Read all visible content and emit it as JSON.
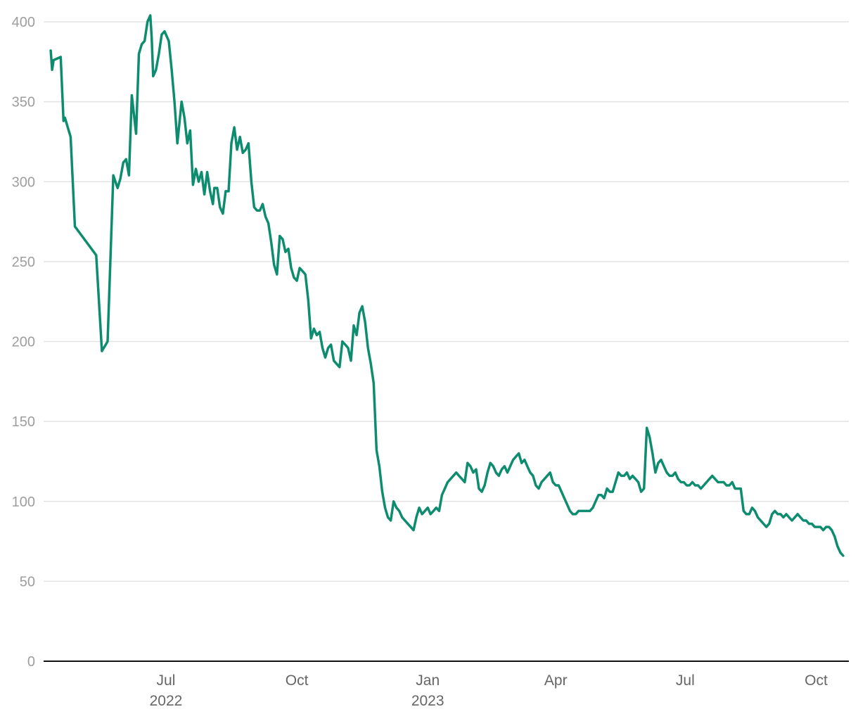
{
  "chart_data": {
    "type": "line",
    "title": "",
    "xlabel": "",
    "ylabel": "",
    "ylim": [
      0,
      400
    ],
    "xlim": [
      "2022-04-06",
      "2023-10-24"
    ],
    "grid": true,
    "legend": "none",
    "y_ticks": [
      0,
      50,
      100,
      150,
      200,
      250,
      300,
      350,
      400
    ],
    "x_ticks": [
      {
        "date": "2022-07-01",
        "label": "Jul",
        "year": "2022"
      },
      {
        "date": "2022-10-01",
        "label": "Oct",
        "year": ""
      },
      {
        "date": "2023-01-01",
        "label": "Jan",
        "year": "2023"
      },
      {
        "date": "2023-04-01",
        "label": "Apr",
        "year": ""
      },
      {
        "date": "2023-07-01",
        "label": "Jul",
        "year": ""
      },
      {
        "date": "2023-10-01",
        "label": "Oct",
        "year": ""
      }
    ],
    "colors": {
      "line": "#0e8c6f",
      "grid": "#e3e3e3",
      "axis": "#111111"
    },
    "x": [
      "2022-04-11",
      "2022-04-12",
      "2022-04-13",
      "2022-04-18",
      "2022-04-20",
      "2022-04-21",
      "2022-04-25",
      "2022-04-28",
      "2022-05-13",
      "2022-05-17",
      "2022-05-21",
      "2022-05-25",
      "2022-05-28",
      "2022-05-30",
      "2022-06-01",
      "2022-06-03",
      "2022-06-05",
      "2022-06-07",
      "2022-06-10",
      "2022-06-12",
      "2022-06-14",
      "2022-06-16",
      "2022-06-18",
      "2022-06-20",
      "2022-06-21",
      "2022-06-22",
      "2022-06-24",
      "2022-06-26",
      "2022-06-28",
      "2022-06-30",
      "2022-07-03",
      "2022-07-05",
      "2022-07-07",
      "2022-07-09",
      "2022-07-12",
      "2022-07-14",
      "2022-07-16",
      "2022-07-18",
      "2022-07-20",
      "2022-07-22",
      "2022-07-24",
      "2022-07-26",
      "2022-07-28",
      "2022-07-30",
      "2022-08-01",
      "2022-08-03",
      "2022-08-04",
      "2022-08-06",
      "2022-08-08",
      "2022-08-10",
      "2022-08-12",
      "2022-08-14",
      "2022-08-16",
      "2022-08-18",
      "2022-08-20",
      "2022-08-22",
      "2022-08-24",
      "2022-08-26",
      "2022-08-28",
      "2022-08-30",
      "2022-09-01",
      "2022-09-03",
      "2022-09-05",
      "2022-09-07",
      "2022-09-09",
      "2022-09-11",
      "2022-09-13",
      "2022-09-15",
      "2022-09-17",
      "2022-09-19",
      "2022-09-21",
      "2022-09-23",
      "2022-09-25",
      "2022-09-27",
      "2022-09-29",
      "2022-10-01",
      "2022-10-03",
      "2022-10-05",
      "2022-10-07",
      "2022-10-09",
      "2022-10-11",
      "2022-10-13",
      "2022-10-15",
      "2022-10-17",
      "2022-10-19",
      "2022-10-21",
      "2022-10-23",
      "2022-10-25",
      "2022-10-27",
      "2022-10-29",
      "2022-10-31",
      "2022-11-02",
      "2022-11-04",
      "2022-11-06",
      "2022-11-08",
      "2022-11-10",
      "2022-11-12",
      "2022-11-14",
      "2022-11-16",
      "2022-11-18",
      "2022-11-20",
      "2022-11-22",
      "2022-11-24",
      "2022-11-26",
      "2022-11-28",
      "2022-11-30",
      "2022-12-02",
      "2022-12-04",
      "2022-12-06",
      "2022-12-08",
      "2022-12-10",
      "2022-12-12",
      "2022-12-14",
      "2022-12-16",
      "2022-12-18",
      "2022-12-20",
      "2022-12-22",
      "2022-12-24",
      "2022-12-26",
      "2022-12-28",
      "2022-12-30",
      "2023-01-01",
      "2023-01-03",
      "2023-01-05",
      "2023-01-07",
      "2023-01-09",
      "2023-01-11",
      "2023-01-13",
      "2023-01-15",
      "2023-01-17",
      "2023-01-19",
      "2023-01-21",
      "2023-01-23",
      "2023-01-25",
      "2023-01-27",
      "2023-01-29",
      "2023-01-31",
      "2023-02-02",
      "2023-02-04",
      "2023-02-06",
      "2023-02-08",
      "2023-02-10",
      "2023-02-12",
      "2023-02-14",
      "2023-02-16",
      "2023-02-18",
      "2023-02-20",
      "2023-02-22",
      "2023-02-24",
      "2023-02-26",
      "2023-02-28",
      "2023-03-02",
      "2023-03-04",
      "2023-03-06",
      "2023-03-08",
      "2023-03-10",
      "2023-03-12",
      "2023-03-14",
      "2023-03-16",
      "2023-03-18",
      "2023-03-20",
      "2023-03-22",
      "2023-03-24",
      "2023-03-26",
      "2023-03-28",
      "2023-03-30",
      "2023-04-01",
      "2023-04-03",
      "2023-04-05",
      "2023-04-07",
      "2023-04-09",
      "2023-04-11",
      "2023-04-13",
      "2023-04-15",
      "2023-04-17",
      "2023-04-19",
      "2023-04-21",
      "2023-04-23",
      "2023-04-25",
      "2023-04-27",
      "2023-04-29",
      "2023-05-01",
      "2023-05-03",
      "2023-05-05",
      "2023-05-07",
      "2023-05-09",
      "2023-05-11",
      "2023-05-13",
      "2023-05-15",
      "2023-05-17",
      "2023-05-19",
      "2023-05-21",
      "2023-05-23",
      "2023-05-25",
      "2023-05-27",
      "2023-05-29",
      "2023-05-31",
      "2023-06-02",
      "2023-06-04",
      "2023-06-06",
      "2023-06-08",
      "2023-06-10",
      "2023-06-12",
      "2023-06-14",
      "2023-06-16",
      "2023-06-18",
      "2023-06-20",
      "2023-06-22",
      "2023-06-24",
      "2023-06-26",
      "2023-06-28",
      "2023-06-30",
      "2023-07-02",
      "2023-07-04",
      "2023-07-06",
      "2023-07-08",
      "2023-07-10",
      "2023-07-12",
      "2023-07-14",
      "2023-07-16",
      "2023-07-18",
      "2023-07-20",
      "2023-07-22",
      "2023-07-24",
      "2023-07-26",
      "2023-07-28",
      "2023-07-30",
      "2023-08-01",
      "2023-08-03",
      "2023-08-05",
      "2023-08-07",
      "2023-08-09",
      "2023-08-11",
      "2023-08-13",
      "2023-08-15",
      "2023-08-17",
      "2023-08-19",
      "2023-08-21",
      "2023-08-23",
      "2023-08-25",
      "2023-08-27",
      "2023-08-29",
      "2023-08-31",
      "2023-09-02",
      "2023-09-04",
      "2023-09-06",
      "2023-09-08",
      "2023-09-10",
      "2023-09-12",
      "2023-09-14",
      "2023-09-16",
      "2023-09-18",
      "2023-09-20",
      "2023-09-22",
      "2023-09-24",
      "2023-09-26",
      "2023-09-28",
      "2023-09-30",
      "2023-10-02",
      "2023-10-04",
      "2023-10-06",
      "2023-10-08",
      "2023-10-10",
      "2023-10-12",
      "2023-10-14",
      "2023-10-16",
      "2023-10-18",
      "2023-10-20"
    ],
    "series": [
      {
        "values": [
          382,
          370,
          376,
          378,
          338,
          340,
          328,
          272,
          254,
          194,
          200,
          304,
          296,
          302,
          312,
          314,
          304,
          354,
          330,
          380,
          386,
          388,
          400,
          404,
          390,
          366,
          370,
          380,
          392,
          394,
          388,
          370,
          350,
          324,
          350,
          340,
          324,
          332,
          298,
          308,
          300,
          306,
          292,
          306,
          294,
          286,
          296,
          296,
          284,
          280,
          294,
          294,
          324,
          334,
          320,
          328,
          318,
          320,
          324,
          300,
          284,
          282,
          282,
          286,
          278,
          274,
          262,
          248,
          242,
          266,
          264,
          256,
          258,
          246,
          240,
          238,
          246,
          244,
          242,
          226,
          202,
          208,
          204,
          206,
          196,
          190,
          196,
          198,
          188,
          186,
          184,
          200,
          198,
          196,
          188,
          210,
          204,
          218,
          222,
          212,
          196,
          186,
          174,
          132,
          122,
          106,
          96,
          90,
          88,
          100,
          96,
          94,
          90,
          88,
          86,
          84,
          82,
          90,
          96,
          92,
          94,
          96,
          92,
          94,
          96,
          94,
          104,
          108,
          112,
          114,
          116,
          118,
          116,
          114,
          112,
          124,
          122,
          118,
          120,
          108,
          106,
          110,
          118,
          124,
          122,
          118,
          116,
          120,
          122,
          118,
          122,
          126,
          128,
          130,
          124,
          126,
          122,
          118,
          116,
          110,
          108,
          112,
          114,
          116,
          118,
          112,
          110,
          110,
          106,
          102,
          98,
          94,
          92,
          92,
          94,
          94,
          94,
          94,
          94,
          96,
          100,
          104,
          104,
          102,
          108,
          106,
          106,
          112,
          118,
          116,
          116,
          118,
          114,
          116,
          114,
          112,
          106,
          108,
          146,
          140,
          130,
          118,
          124,
          126,
          122,
          118,
          116,
          116,
          118,
          114,
          112,
          112,
          110,
          110,
          112,
          110,
          110,
          108,
          110,
          112,
          114,
          116,
          114,
          112,
          112,
          112,
          110,
          110,
          112,
          108,
          108,
          108,
          94,
          92,
          92,
          96,
          94,
          90,
          88,
          86,
          84,
          86,
          92,
          94,
          92,
          92,
          90,
          92,
          90,
          88,
          90,
          92,
          90,
          88,
          88,
          86,
          86,
          84,
          84,
          84,
          82,
          84,
          84,
          82,
          78,
          72,
          68,
          66
        ]
      }
    ]
  }
}
